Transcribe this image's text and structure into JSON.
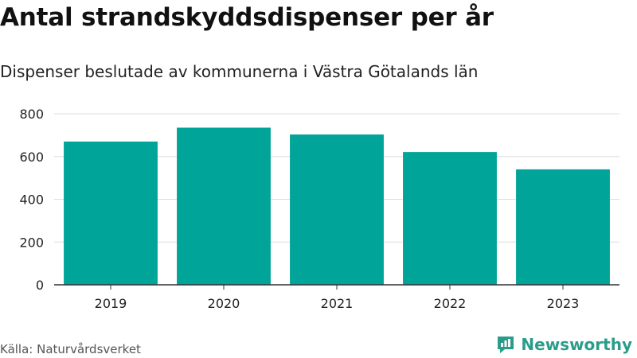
{
  "header": {
    "title": "Antal strandskyddsdispenser per år",
    "subtitle": "Dispenser beslutade av kommunerna i Västra Götalands län"
  },
  "footer": {
    "source": "Källa: Naturvårdsverket",
    "brand": "Newsworthy"
  },
  "colors": {
    "bar": "#00a499",
    "grid": "#dddddd",
    "axis": "#333333",
    "brand": "#2a9d8a"
  },
  "chart_data": {
    "type": "bar",
    "title": "Antal strandskyddsdispenser per år",
    "subtitle": "Dispenser beslutade av kommunerna i Västra Götalands län",
    "xlabel": "",
    "ylabel": "",
    "categories": [
      "2019",
      "2020",
      "2021",
      "2022",
      "2023"
    ],
    "values": [
      670,
      735,
      703,
      621,
      540
    ],
    "ylim": [
      0,
      800
    ],
    "yticks": [
      0,
      200,
      400,
      600,
      800
    ],
    "grid": true,
    "legend": "none"
  }
}
